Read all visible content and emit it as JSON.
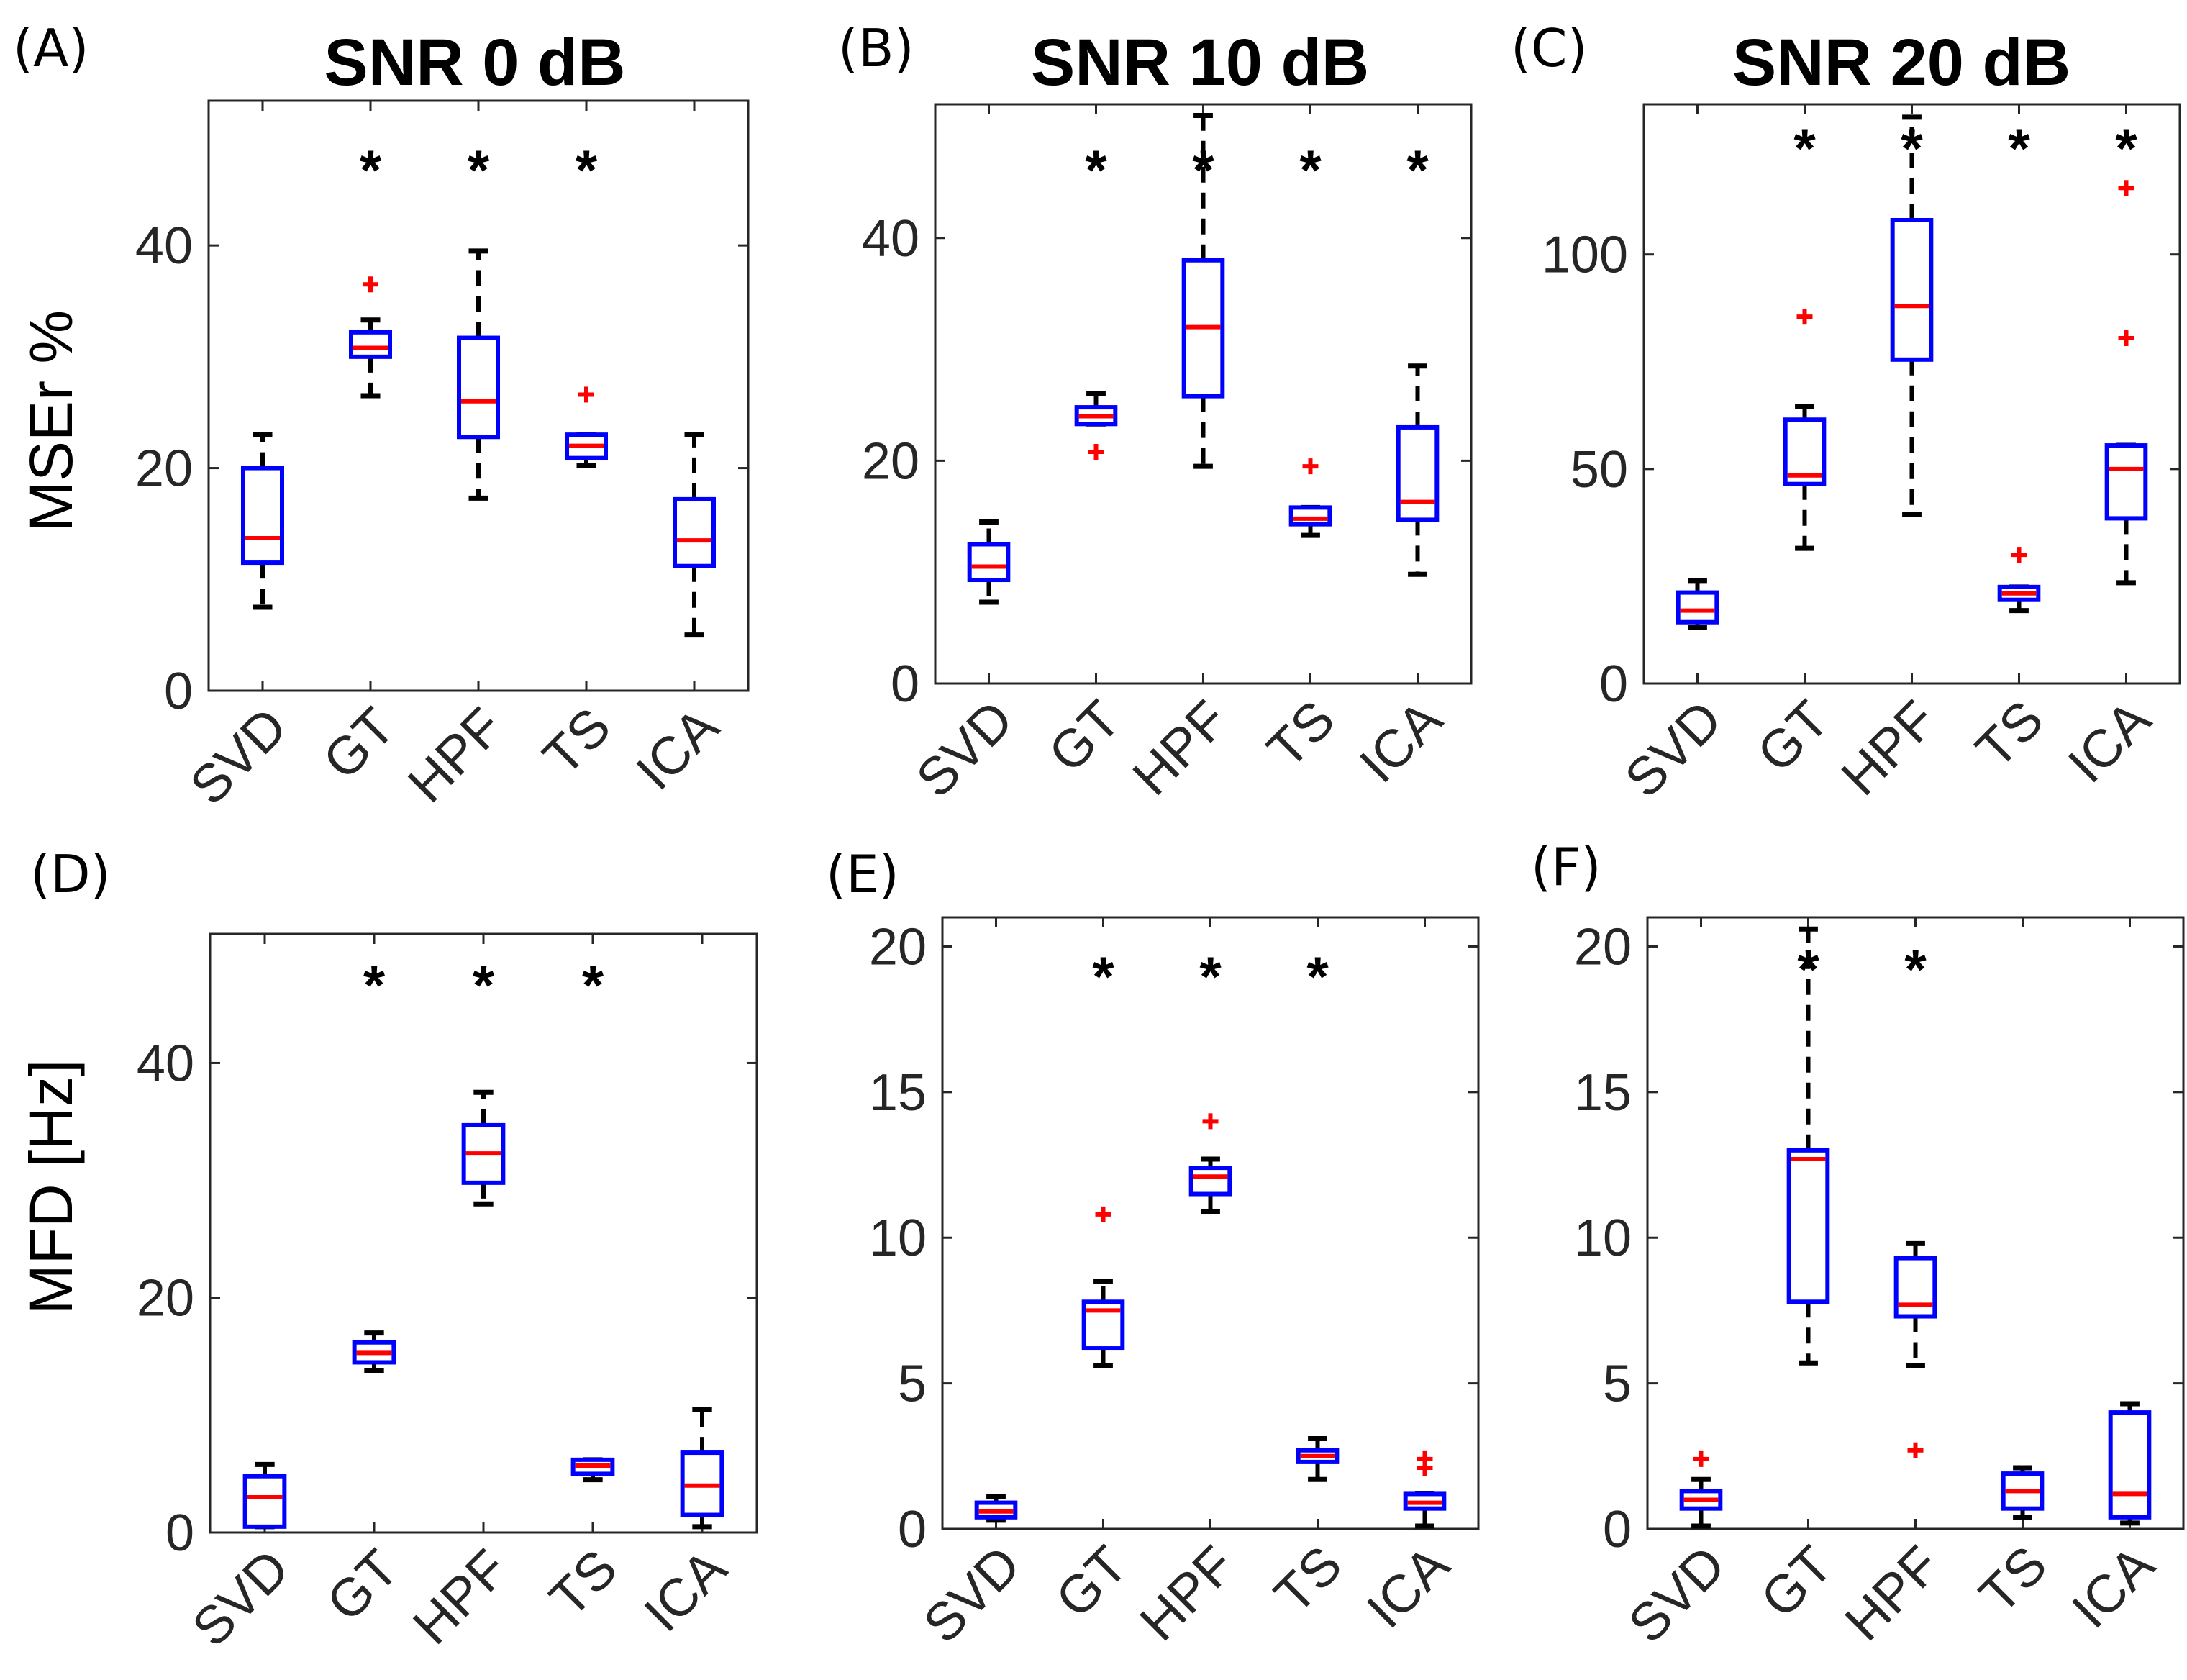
{
  "figure_axis_labels": {
    "top_ylabel": "MSEr %",
    "bottom_ylabel": "MFD [Hz]"
  },
  "colors": {
    "box": "#0000ff",
    "median": "#ff0000",
    "whisker": "#000000",
    "outlier": "#ff0000",
    "axes": "#262626"
  },
  "chart_data": [
    {
      "panel": "(A)",
      "type": "box",
      "title": "SNR 0 dB",
      "ylabel": "MSEr %",
      "categories": [
        "SVD",
        "GT",
        "HPF",
        "TS",
        "ICA"
      ],
      "ylim": [
        0,
        53
      ],
      "yticks": [
        0,
        20,
        40
      ],
      "boxes": [
        {
          "min": 7.5,
          "q1": 11.5,
          "median": 13.7,
          "q3": 20,
          "max": 23,
          "outliers": [],
          "sig": false
        },
        {
          "min": 26.5,
          "q1": 30,
          "median": 30.8,
          "q3": 32.2,
          "max": 33.3,
          "outliers": [
            36.5
          ],
          "sig": true
        },
        {
          "min": 17.3,
          "q1": 22.8,
          "median": 26,
          "q3": 31.7,
          "max": 39.5,
          "outliers": [],
          "sig": true
        },
        {
          "min": 20.2,
          "q1": 20.9,
          "median": 22,
          "q3": 23,
          "max": 23,
          "outliers": [
            26.6
          ],
          "sig": true
        },
        {
          "min": 5,
          "q1": 11.2,
          "median": 13.5,
          "q3": 17.2,
          "max": 23,
          "outliers": [],
          "sig": false
        }
      ],
      "sig_marker": "*"
    },
    {
      "panel": "(B)",
      "type": "box",
      "title": "SNR 10 dB",
      "ylabel": "",
      "categories": [
        "SVD",
        "GT",
        "HPF",
        "TS",
        "ICA"
      ],
      "ylim": [
        0,
        52
      ],
      "yticks": [
        0,
        20,
        40
      ],
      "boxes": [
        {
          "min": 7.3,
          "q1": 9.3,
          "median": 10.5,
          "q3": 12.5,
          "max": 14.5,
          "outliers": [],
          "sig": false
        },
        {
          "min": 23.3,
          "q1": 23.3,
          "median": 24,
          "q3": 24.8,
          "max": 26,
          "outliers": [
            20.8
          ],
          "sig": true
        },
        {
          "min": 19.5,
          "q1": 25.8,
          "median": 32,
          "q3": 38,
          "max": 51,
          "outliers": [],
          "sig": true
        },
        {
          "min": 13.3,
          "q1": 14.3,
          "median": 14.8,
          "q3": 15.8,
          "max": 15.8,
          "outliers": [
            19.5
          ],
          "sig": true
        },
        {
          "min": 9.8,
          "q1": 14.7,
          "median": 16.3,
          "q3": 23,
          "max": 28.5,
          "outliers": [],
          "sig": true
        }
      ],
      "sig_marker": "*"
    },
    {
      "panel": "(C)",
      "type": "box",
      "title": "SNR 20 dB",
      "ylabel": "",
      "categories": [
        "SVD",
        "GT",
        "HPF",
        "TS",
        "ICA"
      ],
      "ylim": [
        0,
        135
      ],
      "yticks": [
        0,
        50,
        100
      ],
      "boxes": [
        {
          "min": 13,
          "q1": 14.3,
          "median": 17,
          "q3": 21.2,
          "max": 24,
          "outliers": [],
          "sig": false
        },
        {
          "min": 31.5,
          "q1": 46.5,
          "median": 48.5,
          "q3": 61.5,
          "max": 64.5,
          "outliers": [
            85.5
          ],
          "sig": true
        },
        {
          "min": 39.5,
          "q1": 75.5,
          "median": 88,
          "q3": 108,
          "max": 132,
          "outliers": [],
          "sig": true
        },
        {
          "min": 17,
          "q1": 19.5,
          "median": 21,
          "q3": 22.5,
          "max": 22.5,
          "outliers": [
            30
          ],
          "sig": true
        },
        {
          "min": 23.5,
          "q1": 38.5,
          "median": 50,
          "q3": 55.5,
          "max": 55.5,
          "outliers": [
            80.5,
            115.5
          ],
          "sig": true
        }
      ],
      "sig_marker": "*"
    },
    {
      "panel": "(D)",
      "type": "box",
      "title": "",
      "ylabel": "MFD [Hz]",
      "categories": [
        "SVD",
        "GT",
        "HPF",
        "TS",
        "ICA"
      ],
      "ylim": [
        0,
        51
      ],
      "yticks": [
        0,
        20,
        40
      ],
      "boxes": [
        {
          "min": 0.5,
          "q1": 0.5,
          "median": 3,
          "q3": 4.8,
          "max": 5.8,
          "outliers": [],
          "sig": false
        },
        {
          "min": 13.8,
          "q1": 14.5,
          "median": 15.3,
          "q3": 16.2,
          "max": 17,
          "outliers": [],
          "sig": true
        },
        {
          "min": 28,
          "q1": 29.8,
          "median": 32.3,
          "q3": 34.7,
          "max": 37.5,
          "outliers": [],
          "sig": true
        },
        {
          "min": 4.5,
          "q1": 5,
          "median": 5.7,
          "q3": 6.2,
          "max": 6.2,
          "outliers": [],
          "sig": true
        },
        {
          "min": 0.5,
          "q1": 1.5,
          "median": 4,
          "q3": 6.8,
          "max": 10.5,
          "outliers": [],
          "sig": false
        }
      ],
      "sig_marker": "*"
    },
    {
      "panel": "(E)",
      "type": "box",
      "title": "",
      "ylabel": "",
      "categories": [
        "SVD",
        "GT",
        "HPF",
        "TS",
        "ICA"
      ],
      "ylim": [
        0,
        21
      ],
      "yticks": [
        0,
        5,
        10,
        15,
        20
      ],
      "boxes": [
        {
          "min": 0.3,
          "q1": 0.4,
          "median": 0.6,
          "q3": 0.9,
          "max": 1.1,
          "outliers": [],
          "sig": false
        },
        {
          "min": 5.6,
          "q1": 6.2,
          "median": 7.5,
          "q3": 7.8,
          "max": 8.5,
          "outliers": [
            10.8
          ],
          "sig": true
        },
        {
          "min": 10.9,
          "q1": 11.5,
          "median": 12.1,
          "q3": 12.4,
          "max": 12.7,
          "outliers": [
            14
          ],
          "sig": true
        },
        {
          "min": 1.7,
          "q1": 2.3,
          "median": 2.5,
          "q3": 2.7,
          "max": 3.1,
          "outliers": [],
          "sig": true
        },
        {
          "min": 0.1,
          "q1": 0.7,
          "median": 0.9,
          "q3": 1.2,
          "max": 1.2,
          "outliers": [
            2.1,
            2.4
          ],
          "sig": false
        }
      ],
      "sig_marker": "*"
    },
    {
      "panel": "(F)",
      "type": "box",
      "title": "",
      "ylabel": "",
      "categories": [
        "SVD",
        "GT",
        "HPF",
        "TS",
        "ICA"
      ],
      "ylim": [
        0,
        21
      ],
      "yticks": [
        0,
        5,
        10,
        15,
        20
      ],
      "boxes": [
        {
          "min": 0.1,
          "q1": 0.7,
          "median": 1,
          "q3": 1.3,
          "max": 1.7,
          "outliers": [
            2.4
          ],
          "sig": false
        },
        {
          "min": 5.7,
          "q1": 7.8,
          "median": 12.7,
          "q3": 13,
          "max": 20.6,
          "outliers": [],
          "sig": true
        },
        {
          "min": 5.6,
          "q1": 7.3,
          "median": 7.7,
          "q3": 9.3,
          "max": 9.8,
          "outliers": [
            2.7
          ],
          "sig": true
        },
        {
          "min": 0.4,
          "q1": 0.7,
          "median": 1.3,
          "q3": 1.9,
          "max": 2.1,
          "outliers": [],
          "sig": false
        },
        {
          "min": 0.2,
          "q1": 0.4,
          "median": 1.2,
          "q3": 4,
          "max": 4.3,
          "outliers": [],
          "sig": false
        }
      ],
      "sig_marker": "*"
    }
  ]
}
